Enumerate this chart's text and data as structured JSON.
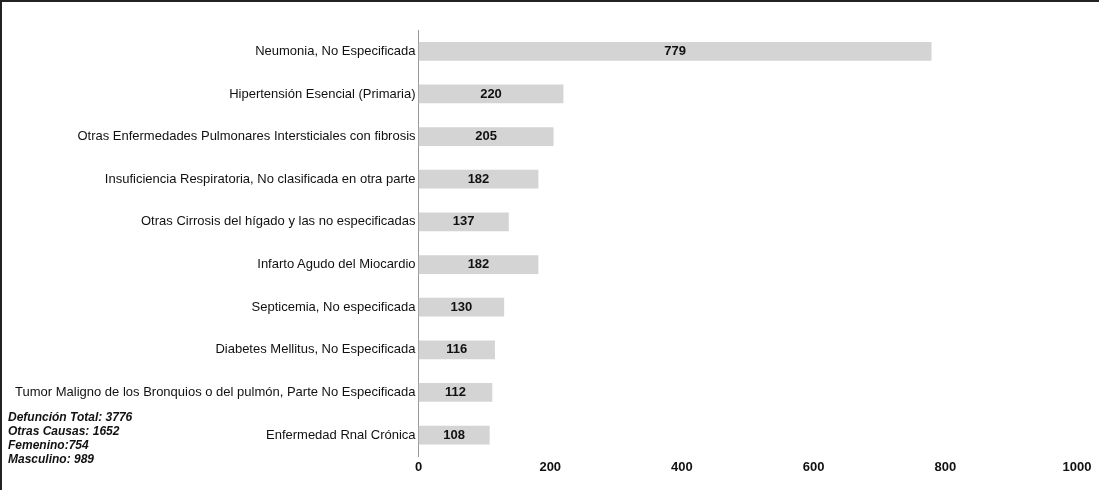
{
  "chart_data": {
    "type": "bar",
    "orientation": "horizontal",
    "categories": [
      "Neumonia, No Especificada",
      "Hipertensión Esencial (Primaria)",
      "Otras Enfermedades Pulmonares Intersticiales con fibrosis",
      "Insuficiencia Respiratoria, No clasificada en otra parte",
      "Otras Cirrosis del hígado y las no especificadas",
      "Infarto Agudo del Miocardio",
      "Septicemia, No especificada",
      "Diabetes Mellitus, No Especificada",
      "Tumor Maligno de los Bronquios o del pulmón, Parte No Especificada",
      "Enfermedad Rnal Crónica"
    ],
    "values": [
      779,
      220,
      205,
      182,
      137,
      182,
      130,
      116,
      112,
      108
    ],
    "color": "#d4d4d4",
    "xlim": [
      0,
      1000
    ],
    "xticks": [
      0,
      200,
      400,
      600,
      800,
      1000
    ],
    "data_labels": true,
    "grid": false,
    "legend": false,
    "annotations": [
      "Defunción Total: 3776",
      "Otras Causas: 1652",
      "Femenino:754",
      "Masculino: 989"
    ]
  }
}
